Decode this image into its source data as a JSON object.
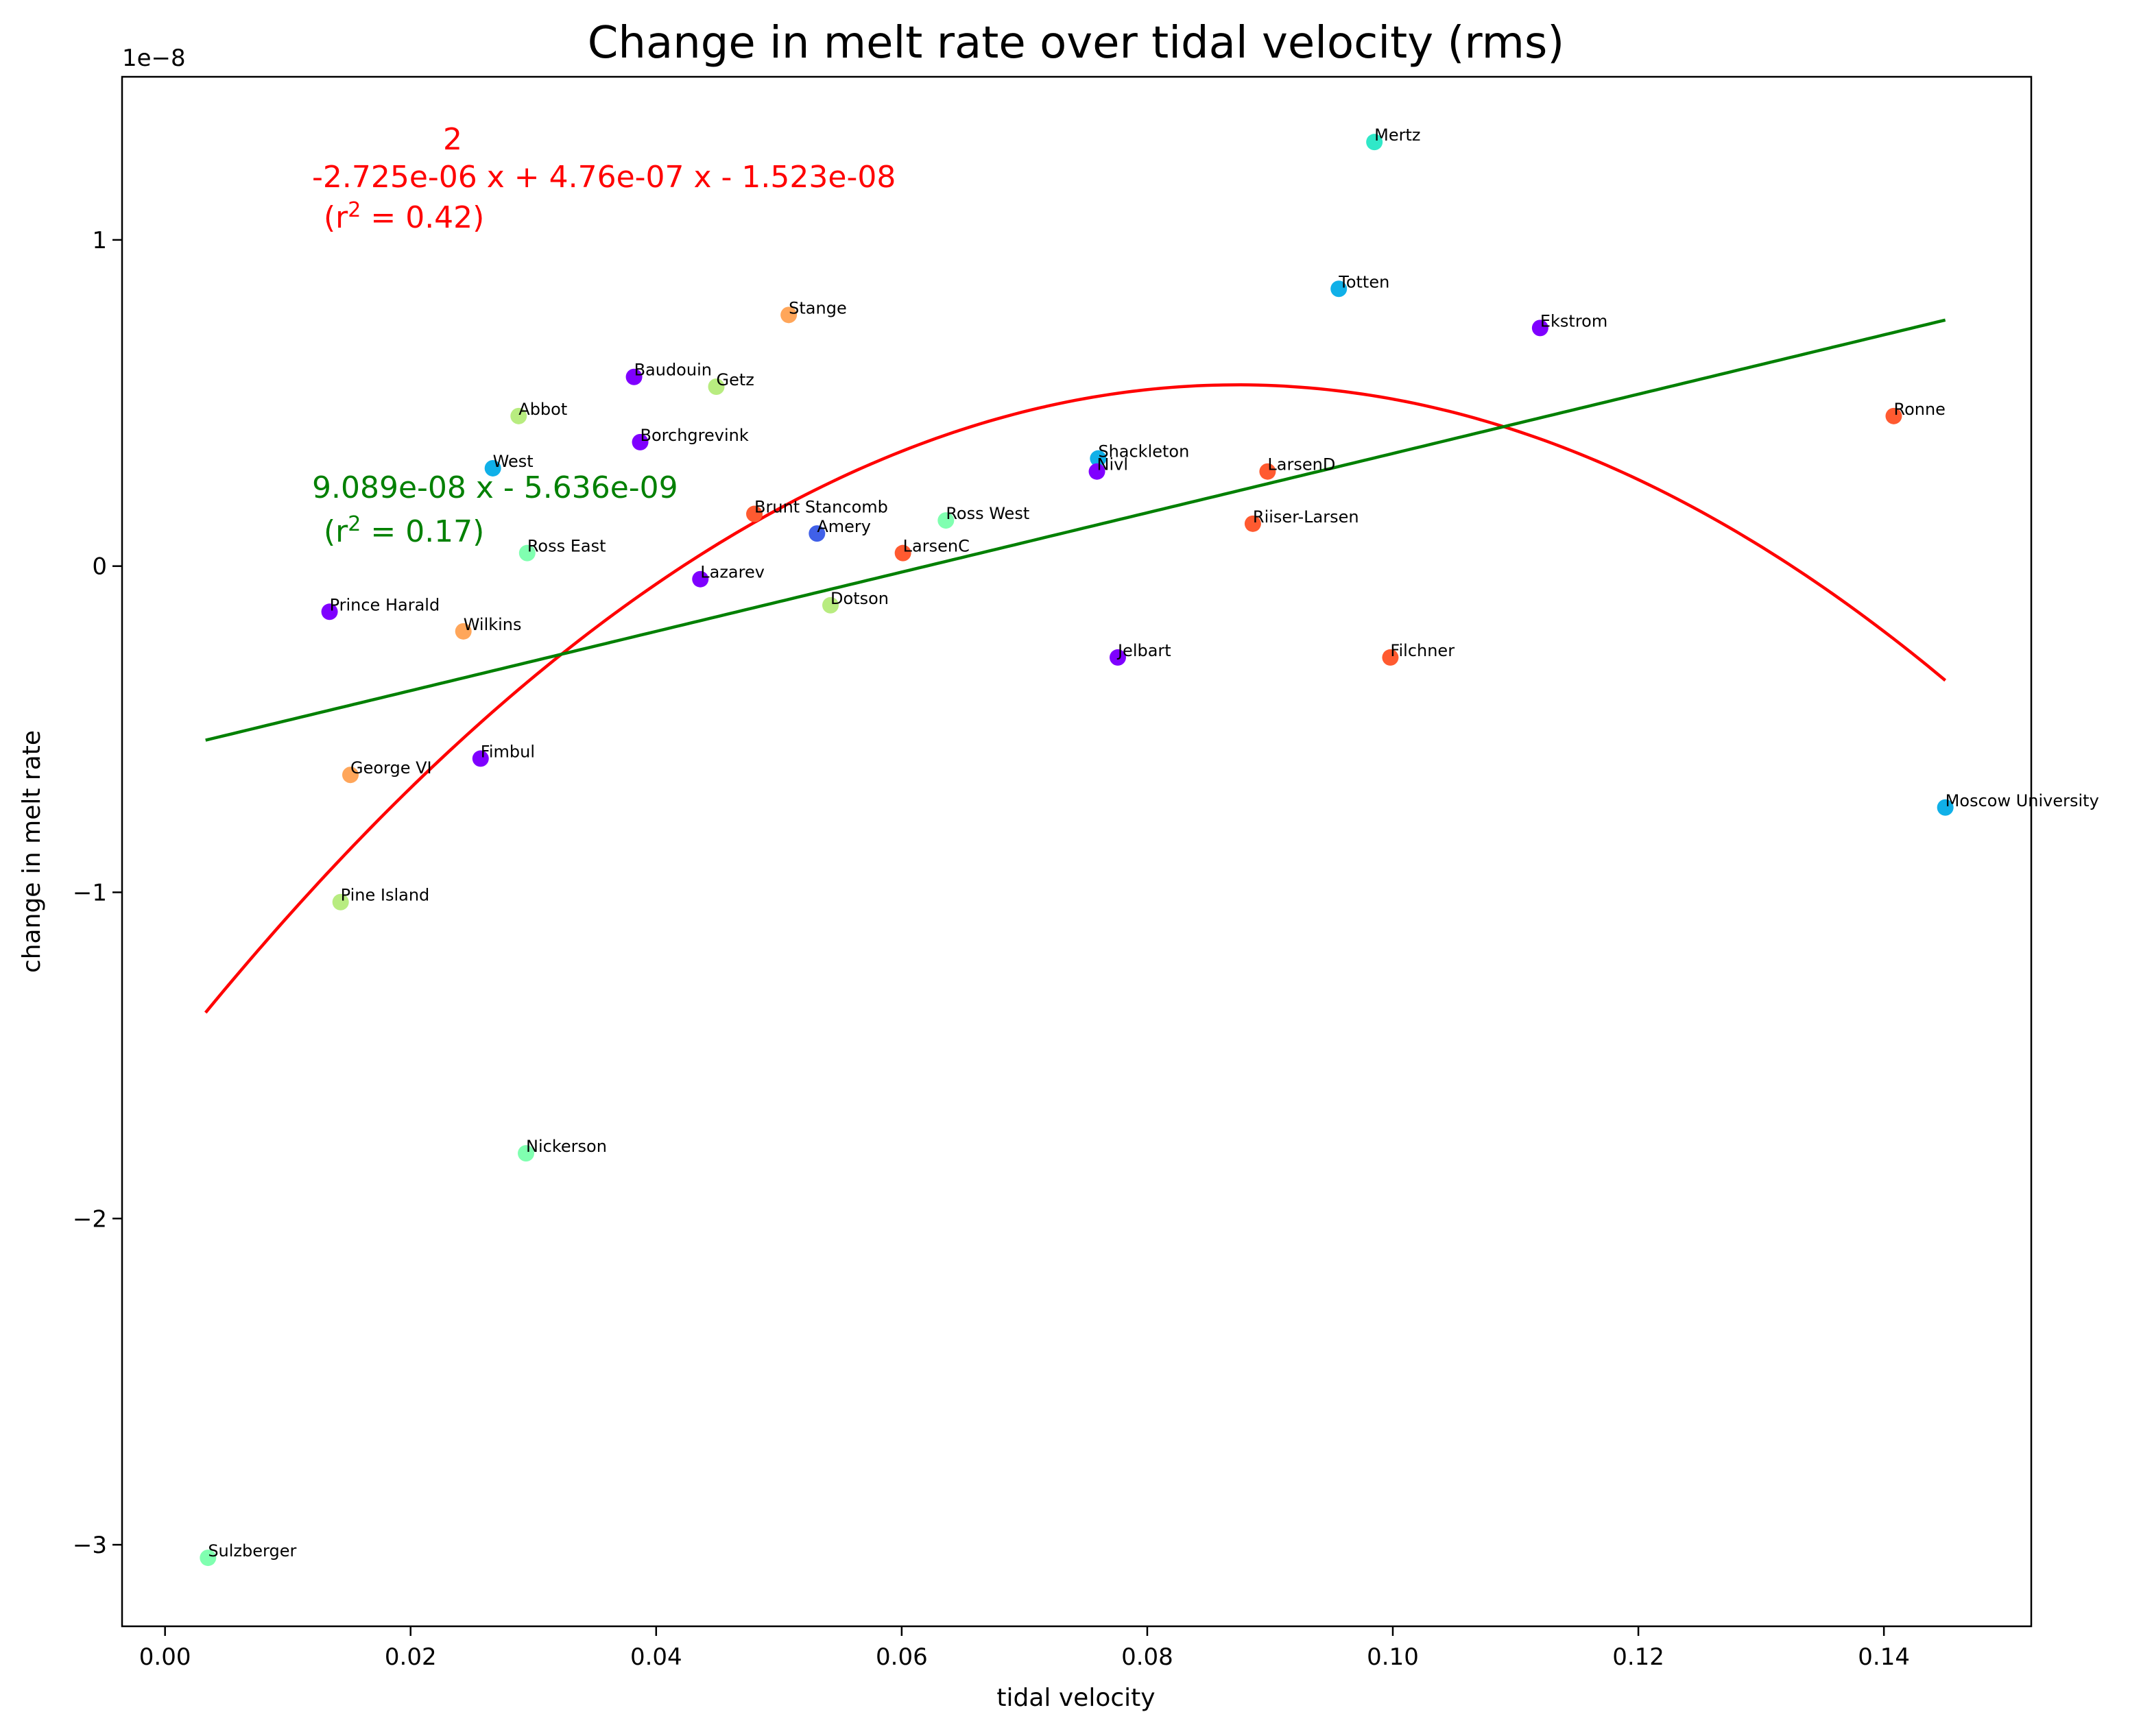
{
  "chart_data": {
    "type": "scatter",
    "title": "Change in melt rate over tidal velocity (rms)",
    "xlabel": "tidal velocity",
    "ylabel": "change in melt rate",
    "y_offset_label": "1e−8",
    "y_scale": 1e-08,
    "xlim": [
      -0.0035,
      0.152
    ],
    "ylim": [
      -3.25,
      1.5
    ],
    "x_ticks": [
      0.0,
      0.02,
      0.04,
      0.06,
      0.08,
      0.1,
      0.12,
      0.14
    ],
    "x_tick_labels": [
      "0.00",
      "0.02",
      "0.04",
      "0.06",
      "0.08",
      "0.10",
      "0.12",
      "0.14"
    ],
    "y_ticks": [
      -3,
      -2,
      -1,
      0,
      1
    ],
    "y_tick_labels": [
      "−3",
      "−2",
      "−1",
      "0",
      "1"
    ],
    "grid": false,
    "points": [
      {
        "label": "Mertz",
        "x": 0.0985,
        "y": 1.3,
        "color": "#30e8c8"
      },
      {
        "label": "Totten",
        "x": 0.0956,
        "y": 0.85,
        "color": "#10b0e8"
      },
      {
        "label": "Ekstrom",
        "x": 0.112,
        "y": 0.73,
        "color": "#7f00ff"
      },
      {
        "label": "Stange",
        "x": 0.0508,
        "y": 0.77,
        "color": "#ffa65a"
      },
      {
        "label": "Baudouin",
        "x": 0.0382,
        "y": 0.58,
        "color": "#7f00ff"
      },
      {
        "label": "Getz",
        "x": 0.0449,
        "y": 0.55,
        "color": "#b8ec80"
      },
      {
        "label": "Abbot",
        "x": 0.0288,
        "y": 0.46,
        "color": "#b8ec80"
      },
      {
        "label": "Ronne",
        "x": 0.1408,
        "y": 0.46,
        "color": "#ff5a30"
      },
      {
        "label": "Borchgrevink",
        "x": 0.0387,
        "y": 0.38,
        "color": "#7f00ff"
      },
      {
        "label": "Shackleton",
        "x": 0.076,
        "y": 0.33,
        "color": "#10b0e8"
      },
      {
        "label": "West",
        "x": 0.0267,
        "y": 0.3,
        "color": "#10b0e8"
      },
      {
        "label": "Nivl",
        "x": 0.0759,
        "y": 0.29,
        "color": "#7f00ff"
      },
      {
        "label": "LarsenD",
        "x": 0.0898,
        "y": 0.29,
        "color": "#ff5a30"
      },
      {
        "label": "Brunt Stancomb",
        "x": 0.048,
        "y": 0.16,
        "color": "#ff5a30"
      },
      {
        "label": "Ross West",
        "x": 0.0636,
        "y": 0.14,
        "color": "#80ffb0"
      },
      {
        "label": "Riiser-Larsen",
        "x": 0.0886,
        "y": 0.13,
        "color": "#ff5a30"
      },
      {
        "label": "Amery",
        "x": 0.0531,
        "y": 0.1,
        "color": "#4060e8"
      },
      {
        "label": "Ross East",
        "x": 0.0295,
        "y": 0.04,
        "color": "#80ffb0"
      },
      {
        "label": "LarsenC",
        "x": 0.0601,
        "y": 0.04,
        "color": "#ff5a30"
      },
      {
        "label": "Lazarev",
        "x": 0.0436,
        "y": -0.04,
        "color": "#7f00ff"
      },
      {
        "label": "Dotson",
        "x": 0.0542,
        "y": -0.12,
        "color": "#b8ec80"
      },
      {
        "label": "Prince Harald",
        "x": 0.0134,
        "y": -0.14,
        "color": "#7f00ff"
      },
      {
        "label": "Wilkins",
        "x": 0.0243,
        "y": -0.2,
        "color": "#ffa65a"
      },
      {
        "label": "Jelbart",
        "x": 0.0776,
        "y": -0.28,
        "color": "#7f00ff"
      },
      {
        "label": "Filchner",
        "x": 0.0998,
        "y": -0.28,
        "color": "#ff5a30"
      },
      {
        "label": "Fimbul",
        "x": 0.0257,
        "y": -0.59,
        "color": "#7f00ff"
      },
      {
        "label": "George VI",
        "x": 0.0151,
        "y": -0.64,
        "color": "#ffa65a"
      },
      {
        "label": "Moscow University",
        "x": 0.145,
        "y": -0.74,
        "color": "#10b0e8"
      },
      {
        "label": "Pine Island",
        "x": 0.0143,
        "y": -1.03,
        "color": "#b8ec80"
      },
      {
        "label": "Nickerson",
        "x": 0.0294,
        "y": -1.8,
        "color": "#80ffb0"
      },
      {
        "label": "Sulzberger",
        "x": 0.0035,
        "y": -3.04,
        "color": "#80ffb0"
      }
    ],
    "fits": [
      {
        "kind": "quadratic",
        "color": "#ff0000",
        "coefficients": [
          -2.725e-06,
          4.76e-07,
          -1.523e-08
        ],
        "x_range": [
          0.0033,
          0.145
        ],
        "annotation": {
          "exponent": "2",
          "line1": "-2.725e-06 x + 4.76e-07 x - 1.523e-08",
          "r2_prefix": "(r",
          "r2_sup": "2",
          "r2_suffix": " = 0.42)"
        }
      },
      {
        "kind": "linear",
        "color": "#008000",
        "coefficients": [
          9.089e-08,
          -5.636e-09
        ],
        "x_range": [
          0.0033,
          0.145
        ],
        "annotation": {
          "line1": "9.089e-08 x - 5.636e-09",
          "r2_prefix": "(r",
          "r2_sup": "2",
          "r2_suffix": " = 0.17)"
        }
      }
    ]
  }
}
